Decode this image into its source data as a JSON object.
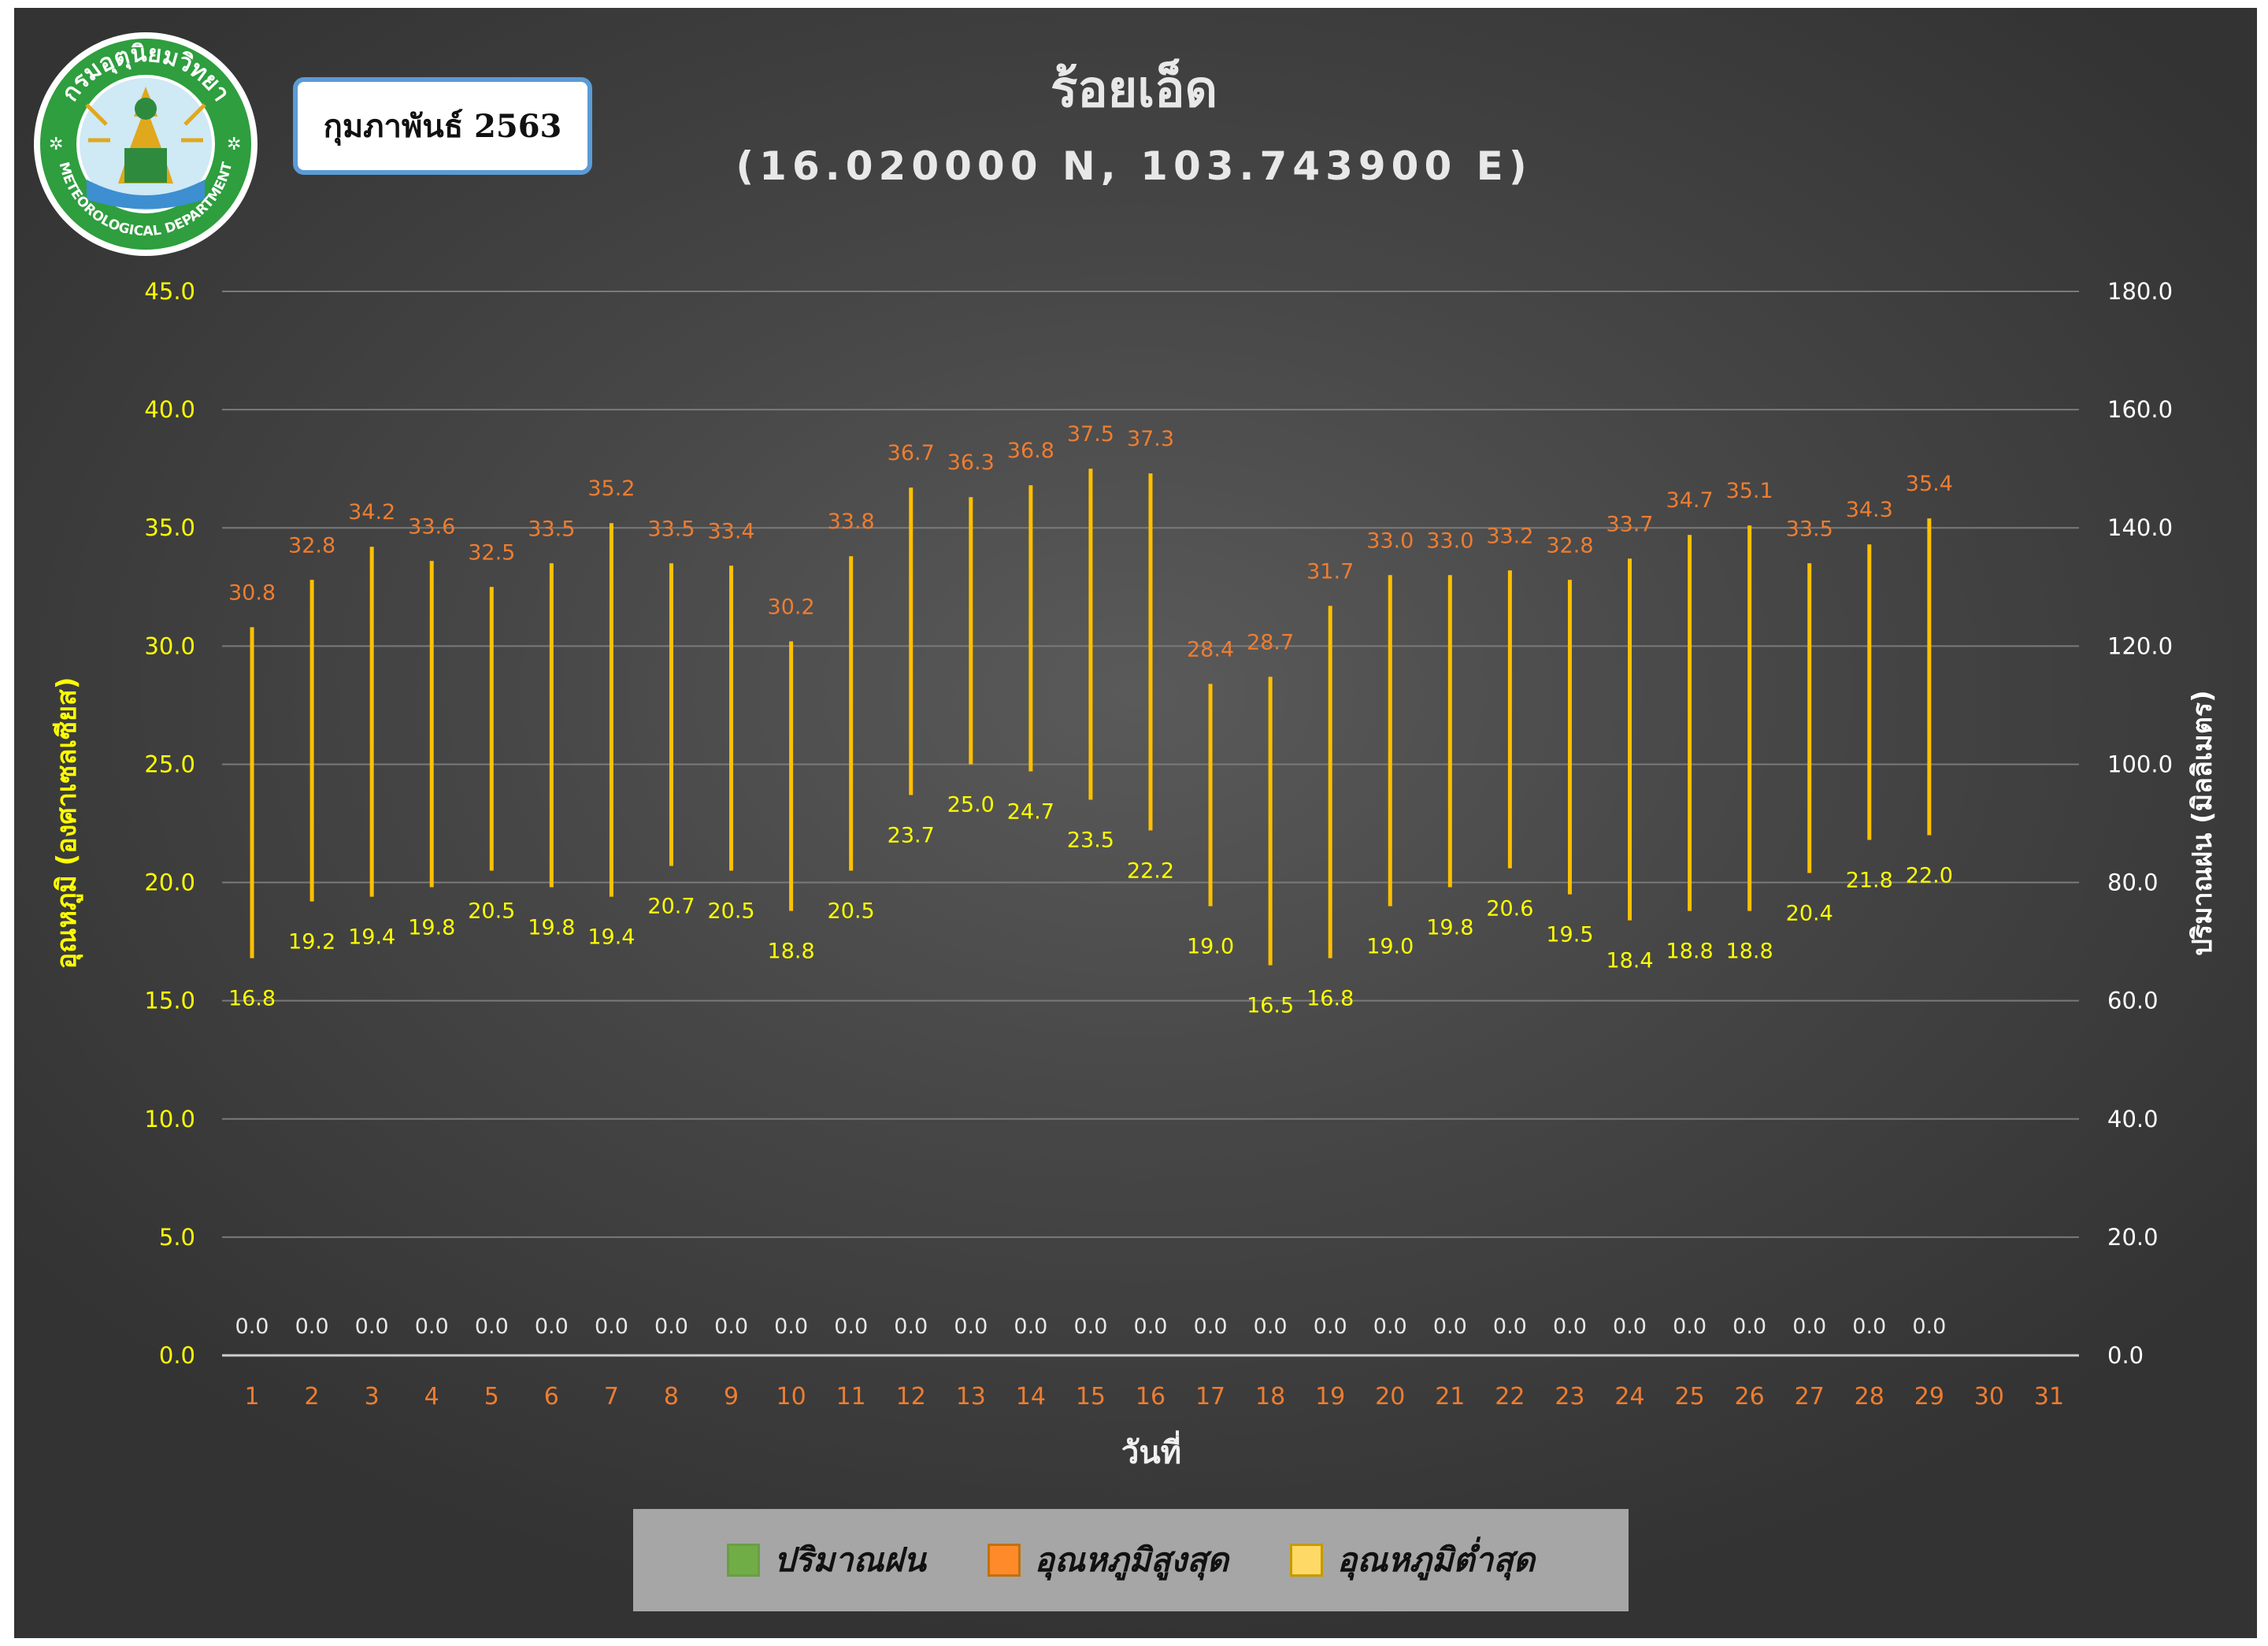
{
  "header": {
    "title": "ร้อยเอ็ด",
    "subtitle": "(16.020000 N, 103.743900 E)",
    "month_label": "กุมภาพันธ์ 2563",
    "logo_text_top": "กรมอุตุนิยมวิทยา",
    "logo_text_bottom": "METEOROLOGICAL DEPARTMENT"
  },
  "colors": {
    "rain": "#70ad47",
    "max_temp": "#ff8a2a",
    "min_temp": "#ffd966",
    "range_bar": "#ffc000",
    "left_axis_text": "#ffff00",
    "right_axis_text": "#ffffff",
    "category_text": "#ed7d31",
    "max_label": "#ed7d31",
    "min_label": "#ffff00",
    "rain_label": "#e8e8e8"
  },
  "chart_data": {
    "type": "bar",
    "xlabel": "วันที่",
    "ylabel": "อุณหภูมิ (องศาเซลเซียส)",
    "y2label": "ปริมาณฝน (มิลลิเมตร)",
    "ylim": [
      0,
      45
    ],
    "y2lim": [
      0,
      180
    ],
    "yticks": [
      "0.0",
      "5.0",
      "10.0",
      "15.0",
      "20.0",
      "25.0",
      "30.0",
      "35.0",
      "40.0",
      "45.0"
    ],
    "y2ticks": [
      "0.0",
      "20.0",
      "40.0",
      "60.0",
      "80.0",
      "100.0",
      "120.0",
      "140.0",
      "160.0",
      "180.0"
    ],
    "grid": true,
    "legend_position": "bottom",
    "categories": [
      "1",
      "2",
      "3",
      "4",
      "5",
      "6",
      "7",
      "8",
      "9",
      "10",
      "11",
      "12",
      "13",
      "14",
      "15",
      "16",
      "17",
      "18",
      "19",
      "20",
      "21",
      "22",
      "23",
      "24",
      "25",
      "26",
      "27",
      "28",
      "29",
      "30",
      "31"
    ],
    "series": [
      {
        "name": "ปริมาณฝน",
        "axis": "right",
        "values": [
          0,
          0,
          0,
          0,
          0,
          0,
          0,
          0,
          0,
          0,
          0,
          0,
          0,
          0,
          0,
          0,
          0,
          0,
          0,
          0,
          0,
          0,
          0,
          0,
          0,
          0,
          0,
          0,
          0,
          null,
          null
        ]
      },
      {
        "name": "อุณหภูมิสูงสุด",
        "axis": "left",
        "values": [
          30.8,
          32.8,
          34.2,
          33.6,
          32.5,
          33.5,
          35.2,
          33.5,
          33.4,
          30.2,
          33.8,
          36.7,
          36.3,
          36.8,
          37.5,
          37.3,
          28.4,
          28.7,
          31.7,
          33.0,
          33.0,
          33.2,
          32.8,
          33.7,
          34.7,
          35.1,
          33.5,
          34.3,
          35.4,
          null,
          null
        ]
      },
      {
        "name": "อุณหภูมิต่ำสุด",
        "axis": "left",
        "values": [
          16.8,
          19.2,
          19.4,
          19.8,
          20.5,
          19.8,
          19.4,
          20.7,
          20.5,
          18.8,
          20.5,
          23.7,
          25.0,
          24.7,
          23.5,
          22.2,
          19.0,
          16.5,
          16.8,
          19.0,
          19.8,
          20.6,
          19.5,
          18.4,
          18.8,
          18.8,
          20.4,
          21.8,
          22.0,
          null,
          null
        ]
      }
    ]
  }
}
